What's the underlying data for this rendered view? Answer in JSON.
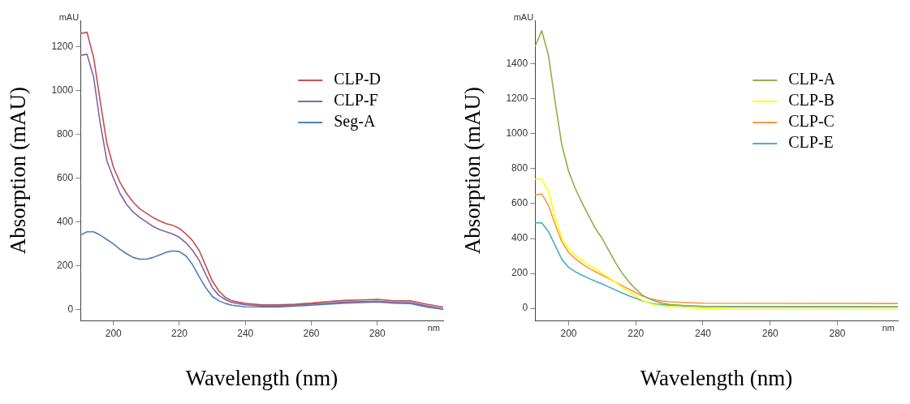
{
  "chart_data": [
    {
      "type": "line",
      "xlabel": "Wavelength (nm)",
      "ylabel": "Absorption (mAU)",
      "annotations": [
        "mAU",
        "nm"
      ],
      "xlim": [
        190,
        300
      ],
      "xticks": [
        200,
        220,
        240,
        260,
        280
      ],
      "ylim": [
        -50,
        1320
      ],
      "yticks": [
        0,
        200,
        400,
        600,
        800,
        1000,
        1200
      ],
      "grid": false,
      "legend": "right",
      "marker": "none",
      "line_style": "solid",
      "series": [
        {
          "name": "CLP-D",
          "color": "#c0504d",
          "x": [
            190,
            192,
            194,
            196,
            198,
            200,
            202,
            204,
            206,
            208,
            210,
            212,
            214,
            216,
            218,
            220,
            222,
            224,
            226,
            228,
            230,
            232,
            234,
            236,
            240,
            245,
            250,
            255,
            260,
            265,
            270,
            275,
            280,
            285,
            290,
            295,
            300
          ],
          "values": [
            1260,
            1265,
            1150,
            950,
            760,
            650,
            580,
            530,
            490,
            460,
            440,
            420,
            405,
            392,
            385,
            370,
            345,
            315,
            270,
            200,
            130,
            85,
            55,
            40,
            28,
            22,
            22,
            25,
            30,
            37,
            42,
            44,
            47,
            40,
            40,
            25,
            12
          ]
        },
        {
          "name": "CLP-F",
          "color": "#8064a2",
          "x": [
            190,
            192,
            194,
            196,
            198,
            200,
            202,
            204,
            206,
            208,
            210,
            212,
            214,
            216,
            218,
            220,
            222,
            224,
            226,
            228,
            230,
            232,
            234,
            236,
            240,
            245,
            250,
            260,
            270,
            280,
            285,
            290,
            295,
            300
          ],
          "values": [
            1160,
            1165,
            1060,
            850,
            680,
            600,
            530,
            480,
            445,
            420,
            400,
            380,
            365,
            355,
            345,
            330,
            305,
            270,
            225,
            160,
            100,
            65,
            45,
            32,
            22,
            17,
            17,
            25,
            35,
            38,
            33,
            32,
            17,
            3
          ]
        },
        {
          "name": "Seg-A",
          "color": "#4a7ebb",
          "x": [
            190,
            192,
            194,
            196,
            198,
            200,
            202,
            204,
            206,
            208,
            210,
            212,
            214,
            216,
            218,
            220,
            222,
            224,
            226,
            228,
            230,
            232,
            234,
            236,
            240,
            250,
            260,
            270,
            280,
            285,
            290,
            295,
            300
          ],
          "values": [
            340,
            355,
            355,
            340,
            320,
            300,
            275,
            255,
            238,
            230,
            230,
            238,
            250,
            262,
            268,
            265,
            245,
            205,
            150,
            100,
            60,
            40,
            28,
            20,
            13,
            12,
            20,
            30,
            35,
            30,
            28,
            12,
            2
          ]
        }
      ]
    },
    {
      "type": "line",
      "xlabel": "Wavelength (nm)",
      "ylabel": "Absorption (mAU)",
      "annotations": [
        "mAU",
        "nm"
      ],
      "xlim": [
        190,
        298
      ],
      "xticks": [
        200,
        220,
        240,
        260,
        280
      ],
      "ylim": [
        -70,
        1650
      ],
      "yticks": [
        0,
        200,
        400,
        600,
        800,
        1000,
        1200,
        1400
      ],
      "grid": false,
      "legend": "right",
      "marker": "none",
      "line_style": "solid",
      "series": [
        {
          "name": "CLP-A",
          "color": "#8db04a",
          "x": [
            190,
            192,
            194,
            196,
            198,
            200,
            202,
            204,
            206,
            208,
            210,
            212,
            214,
            216,
            218,
            220,
            222,
            224,
            226,
            228,
            230,
            235,
            240,
            250,
            298
          ],
          "values": [
            1500,
            1590,
            1450,
            1180,
            933,
            785,
            686,
            604,
            530,
            456,
            400,
            330,
            260,
            200,
            150,
            110,
            75,
            55,
            40,
            30,
            22,
            15,
            10,
            8,
            8
          ]
        },
        {
          "name": "CLP-B",
          "color": "#ffff00",
          "x": [
            190,
            192,
            194,
            196,
            198,
            200,
            202,
            204,
            206,
            208,
            210,
            212,
            214,
            216,
            218,
            220,
            222,
            224,
            226,
            230,
            240,
            250,
            298
          ],
          "values": [
            740,
            740,
            670,
            520,
            400,
            340,
            305,
            275,
            250,
            225,
            200,
            175,
            150,
            120,
            95,
            70,
            45,
            30,
            20,
            10,
            0,
            -5,
            -5
          ]
        },
        {
          "name": "CLP-C",
          "color": "#f79646",
          "x": [
            190,
            192,
            194,
            196,
            198,
            200,
            202,
            204,
            206,
            208,
            210,
            212,
            214,
            216,
            218,
            220,
            222,
            224,
            226,
            228,
            230,
            235,
            240,
            298
          ],
          "values": [
            650,
            655,
            590,
            480,
            380,
            320,
            285,
            255,
            230,
            210,
            190,
            170,
            150,
            130,
            110,
            90,
            70,
            57,
            48,
            42,
            38,
            33,
            30,
            28
          ]
        },
        {
          "name": "CLP-E",
          "color": "#4bacc6",
          "x": [
            190,
            192,
            194,
            196,
            198,
            200,
            202,
            204,
            206,
            208,
            210,
            212,
            214,
            216,
            218,
            220,
            222,
            224,
            226,
            230,
            240,
            298
          ],
          "values": [
            490,
            490,
            440,
            360,
            280,
            235,
            210,
            190,
            172,
            155,
            140,
            122,
            105,
            88,
            72,
            57,
            42,
            32,
            25,
            18,
            12,
            10
          ]
        }
      ]
    }
  ]
}
